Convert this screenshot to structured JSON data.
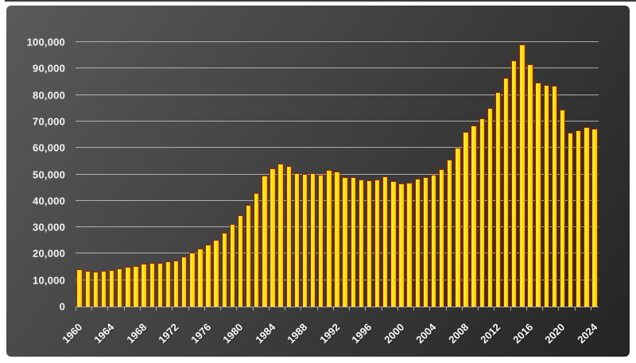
{
  "frame": {
    "page_background": "#ffffff",
    "panel_background_start": "#5a5a5a",
    "panel_background_end": "#242424"
  },
  "chart_data": {
    "type": "bar",
    "title": "",
    "xlabel": "",
    "ylabel": "",
    "grid": true,
    "legend": "none",
    "ylim": [
      0,
      100000
    ],
    "y_tick_interval": 10000,
    "y_tick_labels": [
      "0",
      "10,000",
      "20,000",
      "30,000",
      "40,000",
      "50,000",
      "60,000",
      "70,000",
      "80,000",
      "90,000",
      "100,000"
    ],
    "x_labeled_years": [
      "1960",
      "1964",
      "1968",
      "1972",
      "1976",
      "1980",
      "1984",
      "1988",
      "1992",
      "1996",
      "2000",
      "2004",
      "2008",
      "2012",
      "2016",
      "2020",
      "2024"
    ],
    "x_minor_tick_every_years": 2,
    "bar_fill": "#FFE400",
    "bar_border": "#A32000",
    "gridline_color": "#CDCDCD",
    "label_color": "#FFFFFF",
    "categories": [
      1960,
      1961,
      1962,
      1963,
      1964,
      1965,
      1966,
      1967,
      1968,
      1969,
      1970,
      1971,
      1972,
      1973,
      1974,
      1975,
      1976,
      1977,
      1978,
      1979,
      1980,
      1981,
      1982,
      1983,
      1984,
      1985,
      1986,
      1987,
      1988,
      1989,
      1990,
      1991,
      1992,
      1993,
      1994,
      1995,
      1996,
      1997,
      1998,
      1999,
      2000,
      2001,
      2002,
      2003,
      2004,
      2005,
      2006,
      2007,
      2008,
      2009,
      2010,
      2011,
      2012,
      2013,
      2014,
      2015,
      2016,
      2017,
      2018,
      2019,
      2020,
      2021,
      2022,
      2023,
      2024
    ],
    "values": [
      14200,
      13600,
      13300,
      13600,
      13900,
      14300,
      15000,
      15400,
      16100,
      16500,
      16600,
      17000,
      17500,
      18800,
      20500,
      22000,
      23400,
      25100,
      27800,
      31100,
      34500,
      38400,
      42800,
      49600,
      52300,
      54200,
      53200,
      50400,
      50100,
      50400,
      49800,
      51800,
      51200,
      48900,
      48900,
      47900,
      47600,
      48100,
      49200,
      47400,
      46400,
      46900,
      48400,
      48800,
      49900,
      52100,
      55500,
      60000,
      66100,
      68400,
      71300,
      75000,
      81000,
      86500,
      93000,
      99200,
      91600,
      84600,
      83700,
      83500,
      74400,
      65900,
      66600,
      68000,
      67200
    ]
  }
}
